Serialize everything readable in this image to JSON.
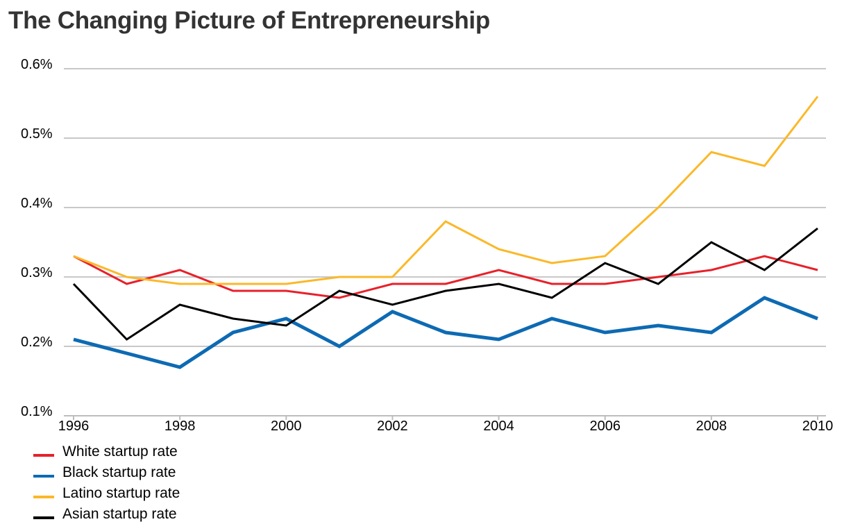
{
  "title": "The Changing Picture of Entrepreneurship",
  "chart_data": {
    "type": "line",
    "title": "The Changing Picture of Entrepreneurship",
    "xlabel": "",
    "ylabel": "",
    "x": [
      1996,
      1997,
      1998,
      1999,
      2000,
      2001,
      2002,
      2003,
      2004,
      2005,
      2006,
      2007,
      2008,
      2009,
      2010
    ],
    "x_tick_labels": [
      "1996",
      "1998",
      "2000",
      "2002",
      "2004",
      "2006",
      "2008",
      "2010"
    ],
    "y_tick_labels": [
      "0.6%",
      "0.5%",
      "0.4%",
      "0.3%",
      "0.2%",
      "0.1%"
    ],
    "ylim": [
      0.1,
      0.6
    ],
    "y_unit": "%",
    "grid": "horizontal",
    "legend_position": "bottom-left",
    "series": [
      {
        "name": "White startup rate",
        "color": "#e8202a",
        "width": 3,
        "values": [
          0.33,
          0.29,
          0.31,
          0.28,
          0.28,
          0.27,
          0.29,
          0.29,
          0.31,
          0.29,
          0.29,
          0.3,
          0.31,
          0.33,
          0.31
        ]
      },
      {
        "name": "Black startup rate",
        "color": "#0d6ab3",
        "width": 5,
        "values": [
          0.21,
          0.19,
          0.17,
          0.22,
          0.24,
          0.2,
          0.25,
          0.22,
          0.21,
          0.24,
          0.22,
          0.23,
          0.22,
          0.27,
          0.24
        ]
      },
      {
        "name": "Latino startup rate",
        "color": "#fbb829",
        "width": 3,
        "values": [
          0.33,
          0.3,
          0.29,
          0.29,
          0.29,
          0.3,
          0.3,
          0.38,
          0.34,
          0.32,
          0.33,
          0.4,
          0.48,
          0.46,
          0.56
        ]
      },
      {
        "name": "Asian startup rate",
        "color": "#000000",
        "width": 3,
        "values": [
          0.29,
          0.21,
          0.26,
          0.24,
          0.23,
          0.28,
          0.26,
          0.28,
          0.29,
          0.27,
          0.32,
          0.29,
          0.35,
          0.31,
          0.37
        ]
      }
    ]
  }
}
